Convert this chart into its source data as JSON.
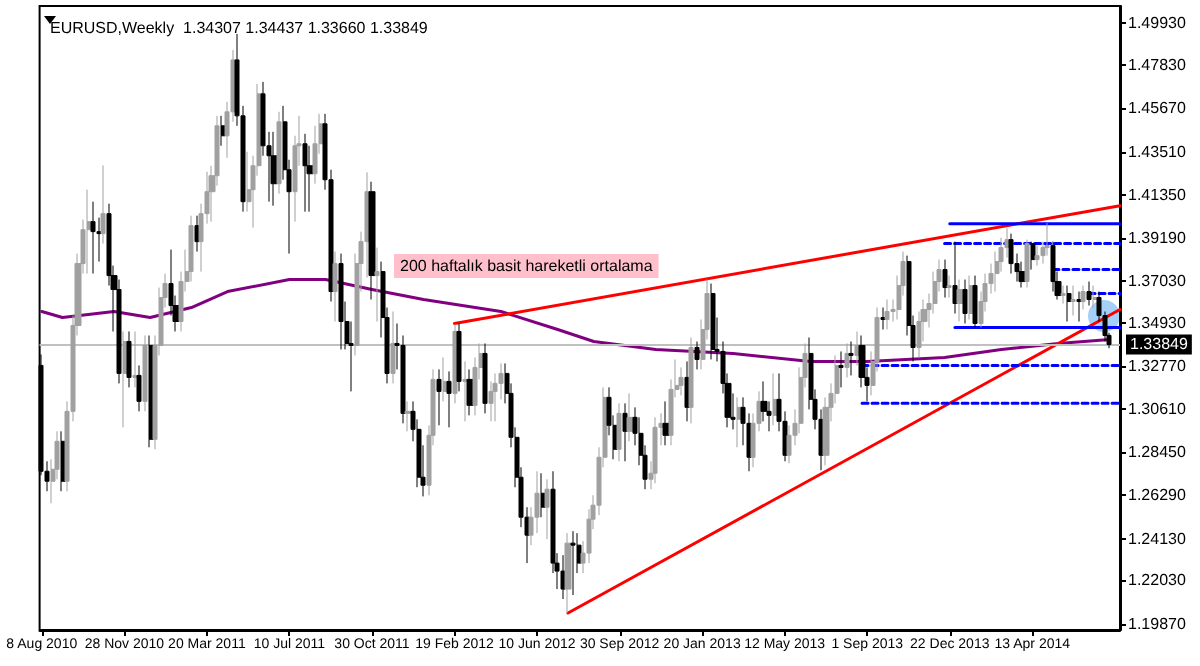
{
  "chart_data": {
    "type": "candlestick",
    "title": "EURUSD,Weekly  1.34307 1.34437 1.33660 1.33849",
    "annotations": [
      "200 haftalık basit hareketli ortalama"
    ],
    "marker": "none",
    "xlim": [
      "2010-08-05",
      "2014-08-10"
    ],
    "ylim": [
      1.1955,
      1.508
    ],
    "xticks": [
      {
        "value": "2010-08-08",
        "label": "8 Aug 2010"
      },
      {
        "value": "2010-11-28",
        "label": "28 Nov 2010"
      },
      {
        "value": "2011-03-20",
        "label": "20 Mar 2011"
      },
      {
        "value": "2011-07-10",
        "label": "10 Jul 2011"
      },
      {
        "value": "2011-10-30",
        "label": "30 Oct 2011"
      },
      {
        "value": "2012-02-19",
        "label": "19 Feb 2012"
      },
      {
        "value": "2012-06-10",
        "label": "10 Jun 2012"
      },
      {
        "value": "2012-09-30",
        "label": "30 Sep 2012"
      },
      {
        "value": "2013-01-20",
        "label": "20 Jan 2013"
      },
      {
        "value": "2013-05-12",
        "label": "12 May 2013"
      },
      {
        "value": "2013-09-01",
        "label": "1 Sep 2013"
      },
      {
        "value": "2013-12-22",
        "label": "22 Dec 2013"
      },
      {
        "value": "2014-04-13",
        "label": "13 Apr 2014"
      }
    ],
    "yticks": [
      {
        "value": 1.1987,
        "label": "1.19870"
      },
      {
        "value": 1.2203,
        "label": "1.22030"
      },
      {
        "value": 1.2413,
        "label": "1.24130"
      },
      {
        "value": 1.2629,
        "label": "1.26290"
      },
      {
        "value": 1.2845,
        "label": "1.28450"
      },
      {
        "value": 1.3061,
        "label": "1.30610"
      },
      {
        "value": 1.3277,
        "label": "1.32770"
      },
      {
        "value": 1.3493,
        "label": "1.34930"
      },
      {
        "value": 1.3703,
        "label": "1.37030"
      },
      {
        "value": 1.3919,
        "label": "1.39190"
      },
      {
        "value": 1.4135,
        "label": "1.41350"
      },
      {
        "value": 1.4351,
        "label": "1.43510"
      },
      {
        "value": 1.4567,
        "label": "1.45670"
      },
      {
        "value": 1.4783,
        "label": "1.47830"
      },
      {
        "value": 1.4993,
        "label": "1.49930"
      }
    ],
    "ref_lines": [
      {
        "axis": "y",
        "value": 1.33849,
        "label": "1.33849",
        "color": "#c0c0c0",
        "line_style": "solid"
      }
    ],
    "x": [
      "2010-08-08",
      "2010-08-15",
      "2010-08-22",
      "2010-08-29",
      "2010-09-05",
      "2010-09-12",
      "2010-09-19",
      "2010-09-26",
      "2010-10-03",
      "2010-10-10",
      "2010-10-17",
      "2010-10-24",
      "2010-10-31",
      "2010-11-07",
      "2010-11-14",
      "2010-11-21",
      "2010-11-28",
      "2010-12-05",
      "2010-12-12",
      "2010-12-19",
      "2010-12-26",
      "2011-01-02",
      "2011-01-09",
      "2011-01-16",
      "2011-01-23",
      "2011-01-30",
      "2011-02-06",
      "2011-02-13",
      "2011-02-20",
      "2011-02-27",
      "2011-03-06",
      "2011-03-13",
      "2011-03-20",
      "2011-03-27",
      "2011-04-03",
      "2011-04-10",
      "2011-04-17",
      "2011-04-24",
      "2011-05-01",
      "2011-05-08",
      "2011-05-15",
      "2011-05-22",
      "2011-05-29",
      "2011-06-05",
      "2011-06-12",
      "2011-06-19",
      "2011-06-26",
      "2011-07-03",
      "2011-07-10",
      "2011-07-17",
      "2011-07-24",
      "2011-07-31",
      "2011-08-07",
      "2011-08-14",
      "2011-08-21",
      "2011-08-28",
      "2011-09-04",
      "2011-09-11",
      "2011-09-18",
      "2011-09-25",
      "2011-10-02",
      "2011-10-09",
      "2011-10-16",
      "2011-10-23",
      "2011-10-30",
      "2011-11-06",
      "2011-11-13",
      "2011-11-20",
      "2011-11-27",
      "2011-12-04",
      "2011-12-11",
      "2011-12-18",
      "2011-12-25",
      "2012-01-01",
      "2012-01-08",
      "2012-01-15",
      "2012-01-22",
      "2012-01-29",
      "2012-02-05",
      "2012-02-12",
      "2012-02-19",
      "2012-02-26",
      "2012-03-04",
      "2012-03-11",
      "2012-03-18",
      "2012-03-25",
      "2012-04-01",
      "2012-04-08",
      "2012-04-15",
      "2012-04-22",
      "2012-04-29",
      "2012-05-06",
      "2012-05-13",
      "2012-05-20",
      "2012-05-27",
      "2012-06-03",
      "2012-06-10",
      "2012-06-17",
      "2012-06-24",
      "2012-07-01",
      "2012-07-08",
      "2012-07-15",
      "2012-07-22",
      "2012-07-29",
      "2012-08-05",
      "2012-08-12",
      "2012-08-19",
      "2012-08-26",
      "2012-09-02",
      "2012-09-09",
      "2012-09-16",
      "2012-09-23",
      "2012-09-30",
      "2012-10-07",
      "2012-10-14",
      "2012-10-21",
      "2012-10-28",
      "2012-11-04",
      "2012-11-11",
      "2012-11-18",
      "2012-11-25",
      "2012-12-02",
      "2012-12-09",
      "2012-12-16",
      "2012-12-23",
      "2012-12-30",
      "2013-01-06",
      "2013-01-13",
      "2013-01-20",
      "2013-01-27",
      "2013-02-03",
      "2013-02-10",
      "2013-02-17",
      "2013-02-24",
      "2013-03-03",
      "2013-03-10",
      "2013-03-17",
      "2013-03-24",
      "2013-03-31",
      "2013-04-07",
      "2013-04-14",
      "2013-04-21",
      "2013-04-28",
      "2013-05-05",
      "2013-05-12",
      "2013-05-19",
      "2013-05-26",
      "2013-06-02",
      "2013-06-09",
      "2013-06-16",
      "2013-06-23",
      "2013-06-30",
      "2013-07-07",
      "2013-07-14",
      "2013-07-21",
      "2013-07-28",
      "2013-08-04",
      "2013-08-11",
      "2013-08-18",
      "2013-08-25",
      "2013-09-01",
      "2013-09-08",
      "2013-09-15",
      "2013-09-22",
      "2013-09-29",
      "2013-10-06",
      "2013-10-13",
      "2013-10-20",
      "2013-10-27",
      "2013-11-03",
      "2013-11-10",
      "2013-11-17",
      "2013-11-24",
      "2013-12-01",
      "2013-12-08",
      "2013-12-15",
      "2013-12-22",
      "2013-12-29",
      "2014-01-05",
      "2014-01-12",
      "2014-01-19",
      "2014-01-26",
      "2014-02-02",
      "2014-02-09",
      "2014-02-16",
      "2014-02-23",
      "2014-03-02",
      "2014-03-09",
      "2014-03-16",
      "2014-03-23",
      "2014-03-30",
      "2014-04-06",
      "2014-04-13",
      "2014-04-20",
      "2014-04-27",
      "2014-05-04",
      "2014-05-11",
      "2014-05-18",
      "2014-05-25",
      "2014-06-01",
      "2014-06-08",
      "2014-06-15",
      "2014-06-22",
      "2014-06-29",
      "2014-07-06",
      "2014-07-13",
      "2014-07-20",
      "2014-07-27"
    ],
    "series": [
      {
        "ohlc": [
          [
            1.328,
            1.3335,
            1.273,
            1.275
          ],
          [
            1.275,
            1.28,
            1.265,
            1.27
          ],
          [
            1.27,
            1.281,
            1.259,
            1.276
          ],
          [
            1.276,
            1.295,
            1.271,
            1.29
          ],
          [
            1.29,
            1.295,
            1.265,
            1.27
          ],
          [
            1.27,
            1.31,
            1.265,
            1.305
          ],
          [
            1.305,
            1.353,
            1.3,
            1.348
          ],
          [
            1.348,
            1.384,
            1.343,
            1.379
          ],
          [
            1.379,
            1.401,
            1.374,
            1.396
          ],
          [
            1.396,
            1.416,
            1.374,
            1.4
          ],
          [
            1.4,
            1.41,
            1.374,
            1.395
          ],
          [
            1.395,
            1.402,
            1.38,
            1.394
          ],
          [
            1.394,
            1.4282,
            1.389,
            1.404
          ],
          [
            1.404,
            1.409,
            1.368,
            1.373
          ],
          [
            1.373,
            1.378,
            1.345,
            1.366
          ],
          [
            1.366,
            1.371,
            1.319,
            1.324
          ],
          [
            1.324,
            1.345,
            1.297,
            1.34
          ],
          [
            1.34,
            1.345,
            1.317,
            1.322
          ],
          [
            1.322,
            1.345,
            1.317,
            1.323
          ],
          [
            1.323,
            1.328,
            1.305,
            1.31
          ],
          [
            1.31,
            1.343,
            1.305,
            1.338
          ],
          [
            1.338,
            1.343,
            1.287,
            1.291
          ],
          [
            1.291,
            1.343,
            1.286,
            1.338
          ],
          [
            1.338,
            1.367,
            1.333,
            1.362
          ],
          [
            1.362,
            1.374,
            1.357,
            1.369
          ],
          [
            1.369,
            1.386,
            1.353,
            1.358
          ],
          [
            1.358,
            1.363,
            1.345,
            1.35
          ],
          [
            1.35,
            1.375,
            1.345,
            1.37
          ],
          [
            1.37,
            1.386,
            1.365,
            1.375
          ],
          [
            1.375,
            1.403,
            1.37,
            1.398
          ],
          [
            1.398,
            1.403,
            1.385,
            1.39
          ],
          [
            1.39,
            1.409,
            1.375,
            1.404
          ],
          [
            1.404,
            1.425,
            1.399,
            1.415
          ],
          [
            1.415,
            1.428,
            1.4,
            1.423
          ],
          [
            1.423,
            1.453,
            1.418,
            1.448
          ],
          [
            1.448,
            1.453,
            1.438,
            1.443
          ],
          [
            1.443,
            1.46,
            1.432,
            1.455
          ],
          [
            1.455,
            1.486,
            1.45,
            1.481
          ],
          [
            1.481,
            1.494,
            1.448,
            1.453
          ],
          [
            1.453,
            1.458,
            1.405,
            1.41
          ],
          [
            1.41,
            1.435,
            1.405,
            1.416
          ],
          [
            1.416,
            1.433,
            1.397,
            1.428
          ],
          [
            1.428,
            1.469,
            1.423,
            1.464
          ],
          [
            1.464,
            1.47,
            1.433,
            1.438
          ],
          [
            1.438,
            1.445,
            1.41,
            1.433
          ],
          [
            1.433,
            1.445,
            1.408,
            1.419
          ],
          [
            1.419,
            1.455,
            1.414,
            1.45
          ],
          [
            1.45,
            1.458,
            1.421,
            1.426
          ],
          [
            1.426,
            1.431,
            1.384,
            1.415
          ],
          [
            1.415,
            1.443,
            1.4,
            1.438
          ],
          [
            1.438,
            1.453,
            1.428,
            1.439
          ],
          [
            1.439,
            1.444,
            1.405,
            1.428
          ],
          [
            1.428,
            1.438,
            1.405,
            1.424
          ],
          [
            1.424,
            1.448,
            1.419,
            1.439
          ],
          [
            1.439,
            1.454,
            1.434,
            1.449
          ],
          [
            1.449,
            1.454,
            1.416,
            1.421
          ],
          [
            1.421,
            1.426,
            1.36,
            1.365
          ],
          [
            1.365,
            1.385,
            1.35,
            1.379
          ],
          [
            1.379,
            1.384,
            1.336,
            1.35
          ],
          [
            1.35,
            1.36,
            1.336,
            1.339
          ],
          [
            1.339,
            1.35,
            1.315,
            1.338
          ],
          [
            1.338,
            1.384,
            1.333,
            1.379
          ],
          [
            1.379,
            1.395,
            1.365,
            1.39
          ],
          [
            1.39,
            1.4247,
            1.372,
            1.415
          ],
          [
            1.415,
            1.42,
            1.361,
            1.373
          ],
          [
            1.373,
            1.387,
            1.35,
            1.375
          ],
          [
            1.375,
            1.38,
            1.342,
            1.352
          ],
          [
            1.352,
            1.357,
            1.319,
            1.324
          ],
          [
            1.324,
            1.355,
            1.319,
            1.339
          ],
          [
            1.339,
            1.349,
            1.326,
            1.338
          ],
          [
            1.338,
            1.343,
            1.299,
            1.304
          ],
          [
            1.304,
            1.31,
            1.295,
            1.305
          ],
          [
            1.305,
            1.31,
            1.29,
            1.296
          ],
          [
            1.296,
            1.301,
            1.267,
            1.272
          ],
          [
            1.272,
            1.288,
            1.2624,
            1.268
          ],
          [
            1.268,
            1.298,
            1.263,
            1.293
          ],
          [
            1.293,
            1.326,
            1.288,
            1.321
          ],
          [
            1.321,
            1.326,
            1.298,
            1.315
          ],
          [
            1.315,
            1.332,
            1.31,
            1.32
          ],
          [
            1.32,
            1.325,
            1.297,
            1.314
          ],
          [
            1.314,
            1.3486,
            1.309,
            1.345
          ],
          [
            1.345,
            1.349,
            1.315,
            1.32
          ],
          [
            1.32,
            1.33,
            1.3,
            1.321
          ],
          [
            1.321,
            1.326,
            1.303,
            1.308
          ],
          [
            1.308,
            1.332,
            1.303,
            1.327
          ],
          [
            1.327,
            1.339,
            1.321,
            1.334
          ],
          [
            1.334,
            1.339,
            1.304,
            1.309
          ],
          [
            1.309,
            1.32,
            1.3,
            1.315
          ],
          [
            1.315,
            1.324,
            1.3,
            1.319
          ],
          [
            1.319,
            1.329,
            1.311,
            1.324
          ],
          [
            1.324,
            1.329,
            1.309,
            1.314
          ],
          [
            1.314,
            1.319,
            1.287,
            1.292
          ],
          [
            1.292,
            1.297,
            1.267,
            1.272
          ],
          [
            1.272,
            1.277,
            1.247,
            1.252
          ],
          [
            1.252,
            1.257,
            1.229,
            1.243
          ],
          [
            1.243,
            1.257,
            1.238,
            1.252
          ],
          [
            1.252,
            1.275,
            1.244,
            1.264
          ],
          [
            1.264,
            1.274,
            1.252,
            1.257
          ],
          [
            1.257,
            1.271,
            1.241,
            1.266
          ],
          [
            1.266,
            1.275,
            1.224,
            1.229
          ],
          [
            1.229,
            1.234,
            1.216,
            1.225
          ],
          [
            1.225,
            1.233,
            1.211,
            1.216
          ],
          [
            1.216,
            1.244,
            1.204,
            1.239
          ],
          [
            1.239,
            1.245,
            1.213,
            1.238
          ],
          [
            1.238,
            1.244,
            1.224,
            1.229
          ],
          [
            1.229,
            1.24,
            1.224,
            1.234
          ],
          [
            1.234,
            1.256,
            1.229,
            1.251
          ],
          [
            1.251,
            1.263,
            1.246,
            1.258
          ],
          [
            1.258,
            1.287,
            1.253,
            1.282
          ],
          [
            1.282,
            1.317,
            1.277,
            1.312
          ],
          [
            1.312,
            1.317,
            1.293,
            1.298
          ],
          [
            1.298,
            1.303,
            1.281,
            1.286
          ],
          [
            1.286,
            1.309,
            1.28,
            1.304
          ],
          [
            1.304,
            1.309,
            1.28,
            1.295
          ],
          [
            1.295,
            1.314,
            1.29,
            1.302
          ],
          [
            1.302,
            1.307,
            1.288,
            1.294
          ],
          [
            1.294,
            1.302,
            1.278,
            1.283
          ],
          [
            1.283,
            1.288,
            1.266,
            1.271
          ],
          [
            1.271,
            1.28,
            1.266,
            1.274
          ],
          [
            1.274,
            1.302,
            1.269,
            1.297
          ],
          [
            1.297,
            1.304,
            1.288,
            1.299
          ],
          [
            1.299,
            1.31,
            1.288,
            1.293
          ],
          [
            1.293,
            1.321,
            1.288,
            1.316
          ],
          [
            1.316,
            1.331,
            1.312,
            1.318
          ],
          [
            1.318,
            1.327,
            1.313,
            1.322
          ],
          [
            1.322,
            1.33,
            1.3,
            1.307
          ],
          [
            1.307,
            1.342,
            1.299,
            1.337
          ],
          [
            1.337,
            1.34,
            1.326,
            1.331
          ],
          [
            1.331,
            1.351,
            1.326,
            1.346
          ],
          [
            1.346,
            1.3711,
            1.341,
            1.364
          ],
          [
            1.364,
            1.369,
            1.331,
            1.336
          ],
          [
            1.336,
            1.352,
            1.33,
            1.335
          ],
          [
            1.335,
            1.34,
            1.314,
            1.319
          ],
          [
            1.319,
            1.324,
            1.297,
            1.302
          ],
          [
            1.302,
            1.314,
            1.296,
            1.301
          ],
          [
            1.301,
            1.312,
            1.287,
            1.307
          ],
          [
            1.307,
            1.312,
            1.288,
            1.299
          ],
          [
            1.299,
            1.304,
            1.275,
            1.282
          ],
          [
            1.282,
            1.304,
            1.277,
            1.299
          ],
          [
            1.299,
            1.315,
            1.295,
            1.31
          ],
          [
            1.31,
            1.32,
            1.3,
            1.305
          ],
          [
            1.305,
            1.31,
            1.295,
            1.303
          ],
          [
            1.303,
            1.324,
            1.298,
            1.311
          ],
          [
            1.311,
            1.324,
            1.295,
            1.3
          ],
          [
            1.3,
            1.305,
            1.28,
            1.283
          ],
          [
            1.283,
            1.298,
            1.279,
            1.293
          ],
          [
            1.293,
            1.306,
            1.288,
            1.299
          ],
          [
            1.299,
            1.327,
            1.294,
            1.322
          ],
          [
            1.322,
            1.339,
            1.317,
            1.334
          ],
          [
            1.334,
            1.342,
            1.306,
            1.311
          ],
          [
            1.311,
            1.316,
            1.296,
            1.301
          ],
          [
            1.301,
            1.306,
            1.2755,
            1.283
          ],
          [
            1.283,
            1.312,
            1.278,
            1.307
          ],
          [
            1.307,
            1.319,
            1.3,
            1.314
          ],
          [
            1.314,
            1.333,
            1.309,
            1.328
          ],
          [
            1.328,
            1.335,
            1.317,
            1.327
          ],
          [
            1.327,
            1.339,
            1.322,
            1.334
          ],
          [
            1.334,
            1.34,
            1.323,
            1.333
          ],
          [
            1.333,
            1.345,
            1.328,
            1.338
          ],
          [
            1.338,
            1.343,
            1.317,
            1.322
          ],
          [
            1.322,
            1.327,
            1.31,
            1.318
          ],
          [
            1.318,
            1.335,
            1.313,
            1.33
          ],
          [
            1.33,
            1.357,
            1.325,
            1.352
          ],
          [
            1.352,
            1.357,
            1.346,
            1.351
          ],
          [
            1.351,
            1.361,
            1.346,
            1.355
          ],
          [
            1.355,
            1.361,
            1.35,
            1.356
          ],
          [
            1.356,
            1.373,
            1.351,
            1.368
          ],
          [
            1.368,
            1.385,
            1.363,
            1.38
          ],
          [
            1.38,
            1.383,
            1.343,
            1.348
          ],
          [
            1.348,
            1.353,
            1.33,
            1.337
          ],
          [
            1.337,
            1.355,
            1.332,
            1.35
          ],
          [
            1.35,
            1.361,
            1.34,
            1.356
          ],
          [
            1.356,
            1.364,
            1.347,
            1.359
          ],
          [
            1.359,
            1.375,
            1.354,
            1.37
          ],
          [
            1.37,
            1.381,
            1.365,
            1.376
          ],
          [
            1.376,
            1.381,
            1.362,
            1.367
          ],
          [
            1.367,
            1.373,
            1.362,
            1.368
          ],
          [
            1.368,
            1.39,
            1.354,
            1.359
          ],
          [
            1.359,
            1.371,
            1.35,
            1.366
          ],
          [
            1.366,
            1.371,
            1.349,
            1.354
          ],
          [
            1.354,
            1.373,
            1.351,
            1.368
          ],
          [
            1.368,
            1.373,
            1.347,
            1.349
          ],
          [
            1.349,
            1.365,
            1.347,
            1.36
          ],
          [
            1.36,
            1.374,
            1.355,
            1.369
          ],
          [
            1.369,
            1.379,
            1.364,
            1.374
          ],
          [
            1.374,
            1.385,
            1.365,
            1.38
          ],
          [
            1.38,
            1.392,
            1.375,
            1.387
          ],
          [
            1.387,
            1.3967,
            1.382,
            1.391
          ],
          [
            1.391,
            1.394,
            1.374,
            1.379
          ],
          [
            1.379,
            1.384,
            1.37,
            1.375
          ],
          [
            1.375,
            1.38,
            1.367,
            1.37
          ],
          [
            1.37,
            1.391,
            1.367,
            1.389
          ],
          [
            1.389,
            1.39,
            1.376,
            1.381
          ],
          [
            1.381,
            1.388,
            1.378,
            1.383
          ],
          [
            1.383,
            1.39,
            1.379,
            1.387
          ],
          [
            1.387,
            1.3993,
            1.383,
            1.388
          ],
          [
            1.388,
            1.39,
            1.365,
            1.37
          ],
          [
            1.37,
            1.375,
            1.361,
            1.363
          ],
          [
            1.363,
            1.368,
            1.359,
            1.364
          ],
          [
            1.364,
            1.368,
            1.35,
            1.36
          ],
          [
            1.36,
            1.368,
            1.353,
            1.361
          ],
          [
            1.361,
            1.365,
            1.35,
            1.36
          ],
          [
            1.36,
            1.368,
            1.356,
            1.365
          ],
          [
            1.365,
            1.37,
            1.358,
            1.361
          ],
          [
            1.361,
            1.368,
            1.357,
            1.362
          ],
          [
            1.362,
            1.365,
            1.35,
            1.353
          ],
          [
            1.353,
            1.355,
            1.34,
            1.343
          ],
          [
            1.34307,
            1.34437,
            1.3366,
            1.33849
          ]
        ],
        "colors": [
          "#000000",
          "#000000",
          "#a0a0a0",
          "#a0a0a0",
          "#000000",
          "#a0a0a0",
          "#a0a0a0",
          "#a0a0a0",
          "#a0a0a0",
          "#a0a0a0",
          "#000000",
          "#000000",
          "#a0a0a0",
          "#000000",
          "#000000",
          "#000000",
          "#a0a0a0",
          "#000000",
          "#a0a0a0",
          "#000000",
          "#a0a0a0",
          "#000000",
          "#a0a0a0",
          "#a0a0a0",
          "#a0a0a0",
          "#000000",
          "#000000",
          "#a0a0a0",
          "#a0a0a0",
          "#a0a0a0",
          "#000000",
          "#a0a0a0",
          "#a0a0a0",
          "#a0a0a0",
          "#a0a0a0",
          "#000000",
          "#a0a0a0",
          "#a0a0a0",
          "#000000",
          "#000000",
          "#a0a0a0",
          "#a0a0a0",
          "#a0a0a0",
          "#000000",
          "#000000",
          "#000000",
          "#a0a0a0",
          "#000000",
          "#000000",
          "#a0a0a0",
          "#a0a0a0",
          "#000000",
          "#000000",
          "#a0a0a0",
          "#a0a0a0",
          "#000000",
          "#000000",
          "#a0a0a0",
          "#000000",
          "#000000",
          "#000000",
          "#a0a0a0",
          "#a0a0a0",
          "#a0a0a0",
          "#000000",
          "#a0a0a0",
          "#000000",
          "#000000",
          "#a0a0a0",
          "#000000",
          "#000000",
          "#a0a0a0",
          "#000000",
          "#000000",
          "#000000",
          "#a0a0a0",
          "#a0a0a0",
          "#000000",
          "#a0a0a0",
          "#000000",
          "#a0a0a0",
          "#000000",
          "#a0a0a0",
          "#000000",
          "#a0a0a0",
          "#a0a0a0",
          "#000000",
          "#a0a0a0",
          "#a0a0a0",
          "#a0a0a0",
          "#000000",
          "#000000",
          "#000000",
          "#000000",
          "#000000",
          "#a0a0a0",
          "#a0a0a0",
          "#000000",
          "#a0a0a0",
          "#000000",
          "#000000",
          "#000000",
          "#a0a0a0",
          "#000000",
          "#000000",
          "#a0a0a0",
          "#a0a0a0",
          "#a0a0a0",
          "#a0a0a0",
          "#a0a0a0",
          "#000000",
          "#000000",
          "#a0a0a0",
          "#000000",
          "#a0a0a0",
          "#000000",
          "#000000",
          "#000000",
          "#a0a0a0",
          "#a0a0a0",
          "#a0a0a0",
          "#000000",
          "#a0a0a0",
          "#a0a0a0",
          "#a0a0a0",
          "#000000",
          "#a0a0a0",
          "#000000",
          "#a0a0a0",
          "#a0a0a0",
          "#000000",
          "#000000",
          "#000000",
          "#000000",
          "#000000",
          "#a0a0a0",
          "#000000",
          "#000000",
          "#a0a0a0",
          "#a0a0a0",
          "#000000",
          "#000000",
          "#a0a0a0",
          "#000000",
          "#000000",
          "#a0a0a0",
          "#a0a0a0",
          "#a0a0a0",
          "#a0a0a0",
          "#000000",
          "#000000",
          "#000000",
          "#a0a0a0",
          "#a0a0a0",
          "#a0a0a0",
          "#000000",
          "#a0a0a0",
          "#000000",
          "#a0a0a0",
          "#000000",
          "#000000",
          "#a0a0a0",
          "#a0a0a0",
          "#000000",
          "#a0a0a0",
          "#a0a0a0",
          "#a0a0a0",
          "#a0a0a0",
          "#000000",
          "#000000",
          "#a0a0a0",
          "#a0a0a0",
          "#a0a0a0",
          "#a0a0a0",
          "#a0a0a0",
          "#000000",
          "#a0a0a0",
          "#000000",
          "#a0a0a0",
          "#000000",
          "#a0a0a0",
          "#000000",
          "#a0a0a0",
          "#a0a0a0",
          "#a0a0a0",
          "#a0a0a0",
          "#a0a0a0",
          "#a0a0a0",
          "#000000",
          "#000000",
          "#000000",
          "#a0a0a0",
          "#000000",
          "#a0a0a0",
          "#a0a0a0",
          "#a0a0a0",
          "#000000",
          "#000000",
          "#a0a0a0",
          "#000000",
          "#a0a0a0",
          "#000000",
          "#a0a0a0",
          "#000000",
          "#a0a0a0",
          "#000000",
          "#000000",
          "#000000"
        ]
      },
      {
        "type": "line",
        "color": "#800080",
        "line_style": "solid",
        "x": [
          "2010-08-08",
          "2010-09-05",
          "2010-11-14",
          "2011-01-02",
          "2011-02-27",
          "2011-04-17",
          "2011-07-10",
          "2011-08-28",
          "2011-10-30",
          "2012-01-08",
          "2012-04-22",
          "2012-07-08",
          "2012-08-26",
          "2012-11-18",
          "2013-03-03",
          "2013-06-16",
          "2013-09-01",
          "2013-12-15",
          "2014-03-02",
          "2014-05-18",
          "2014-07-27"
        ],
        "values": [
          1.355,
          1.352,
          1.355,
          1.352,
          1.357,
          1.365,
          1.371,
          1.371,
          1.366,
          1.361,
          1.355,
          1.346,
          1.34,
          1.336,
          1.334,
          1.33,
          1.33,
          1.332,
          1.336,
          1.339,
          1.341
        ]
      },
      {
        "type": "line",
        "color": "#ff0000",
        "line_style": "solid",
        "x": [
          "2012-02-19",
          "2014-08-10"
        ],
        "values": [
          1.349,
          1.408
        ]
      },
      {
        "type": "line",
        "color": "#ff0000",
        "line_style": "solid",
        "x": [
          "2012-07-22",
          "2014-08-10"
        ],
        "values": [
          1.204,
          1.356
        ]
      },
      {
        "type": "line",
        "color": "#0000ff",
        "line_style": "solid",
        "x": [
          "2013-12-22",
          "2014-08-10"
        ],
        "values": [
          1.399,
          1.399
        ]
      },
      {
        "type": "line",
        "color": "#0000ff",
        "line_style": "dashed",
        "x": [
          "2013-12-15",
          "2014-08-10"
        ],
        "values": [
          1.389,
          1.389
        ]
      },
      {
        "type": "line",
        "color": "#0000ff",
        "line_style": "dashed",
        "x": [
          "2014-05-11",
          "2014-08-10"
        ],
        "values": [
          1.376,
          1.376
        ]
      },
      {
        "type": "line",
        "color": "#0000ff",
        "line_style": "dashed",
        "x": [
          "2014-06-29",
          "2014-08-10"
        ],
        "values": [
          1.364,
          1.364
        ]
      },
      {
        "type": "line",
        "color": "#0000ff",
        "line_style": "solid",
        "x": [
          "2013-12-29",
          "2014-08-10"
        ],
        "values": [
          1.347,
          1.347
        ]
      },
      {
        "type": "line",
        "color": "#0000ff",
        "line_style": "dashed",
        "x": [
          "2013-08-25",
          "2014-08-10"
        ],
        "values": [
          1.328,
          1.328
        ]
      },
      {
        "type": "line",
        "color": "#0000ff",
        "line_style": "dashed",
        "x": [
          "2013-08-25",
          "2014-08-10"
        ],
        "values": [
          1.309,
          1.309
        ]
      }
    ]
  }
}
